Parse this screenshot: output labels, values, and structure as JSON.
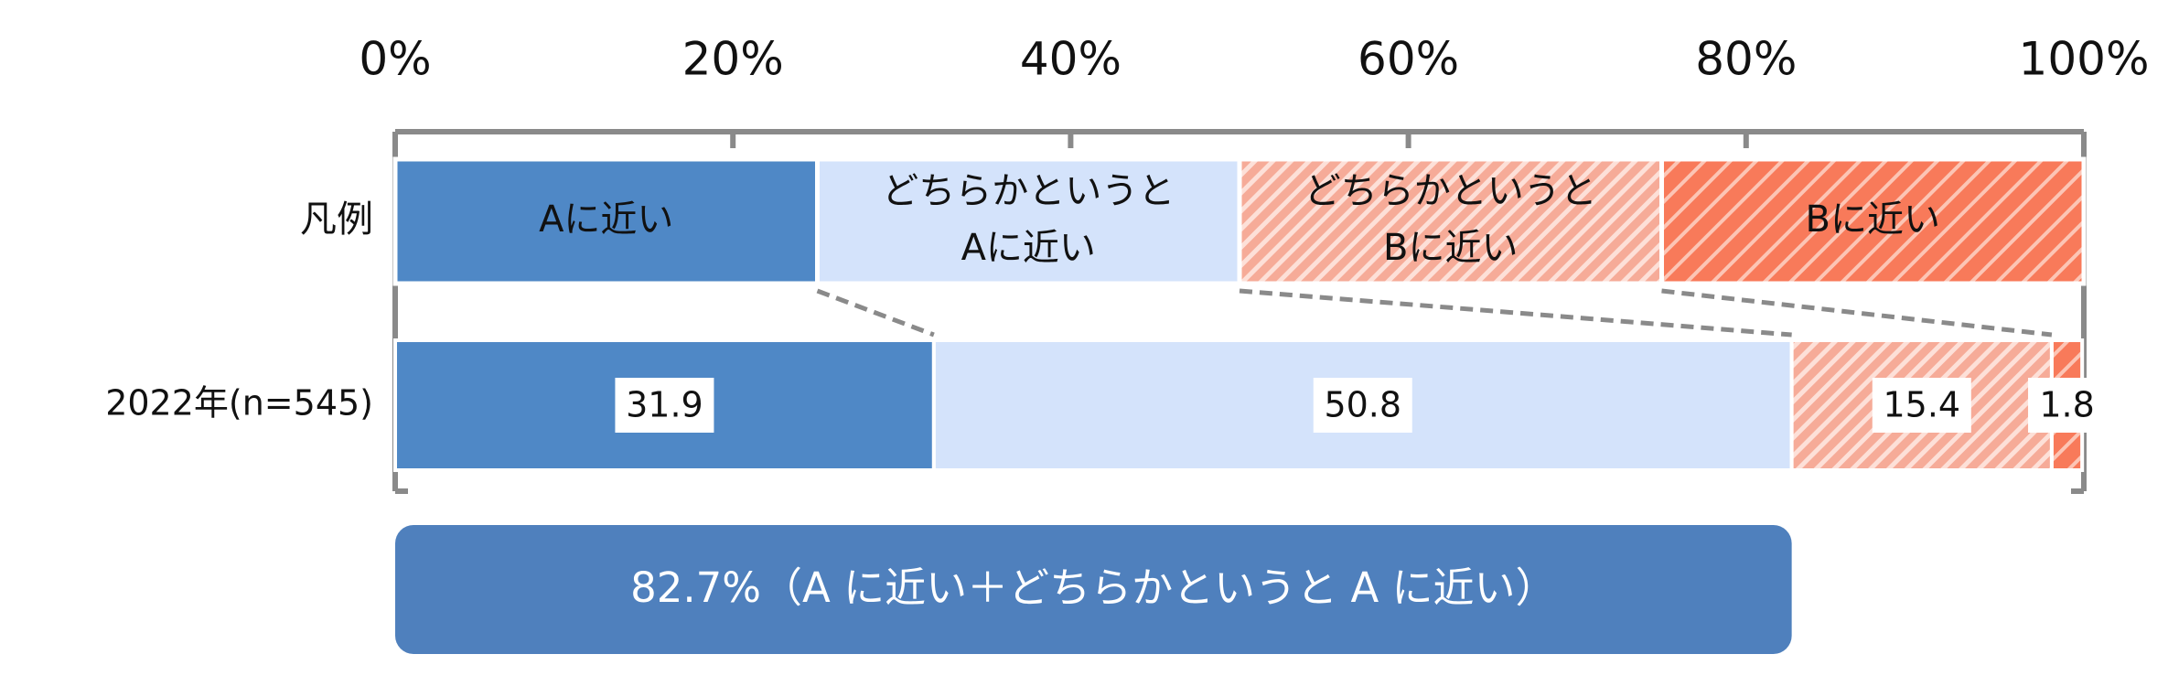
{
  "chart_data": {
    "type": "bar",
    "orientation": "horizontal",
    "stacked": true,
    "legend_label": "凡例",
    "categories": [
      "2022年(n=545)"
    ],
    "series": [
      {
        "name": "Aに近い",
        "color": "#4f88c6",
        "hatch": false,
        "values": [
          31.9
        ]
      },
      {
        "name": "どちらかというと\nAに近い",
        "color": "#d4e3fb",
        "hatch": false,
        "values": [
          50.8
        ]
      },
      {
        "name": "どちらかというと\nBに近い",
        "color": "#f6ab98",
        "hatch": true,
        "values": [
          15.4
        ]
      },
      {
        "name": "Bに近い",
        "color": "#f87a5a",
        "hatch": true,
        "values": [
          1.8
        ]
      }
    ],
    "xlim": [
      0,
      100
    ],
    "xticks": [
      {
        "value": 0,
        "label": "0%"
      },
      {
        "value": 20,
        "label": "20%"
      },
      {
        "value": 40,
        "label": "40%"
      },
      {
        "value": 60,
        "label": "60%"
      },
      {
        "value": 80,
        "label": "80%"
      },
      {
        "value": 100,
        "label": "100%"
      }
    ],
    "annotation": "82.7%（A に近い＋どちらかというと A に近い）",
    "annotation_color": "#4f80bd"
  }
}
